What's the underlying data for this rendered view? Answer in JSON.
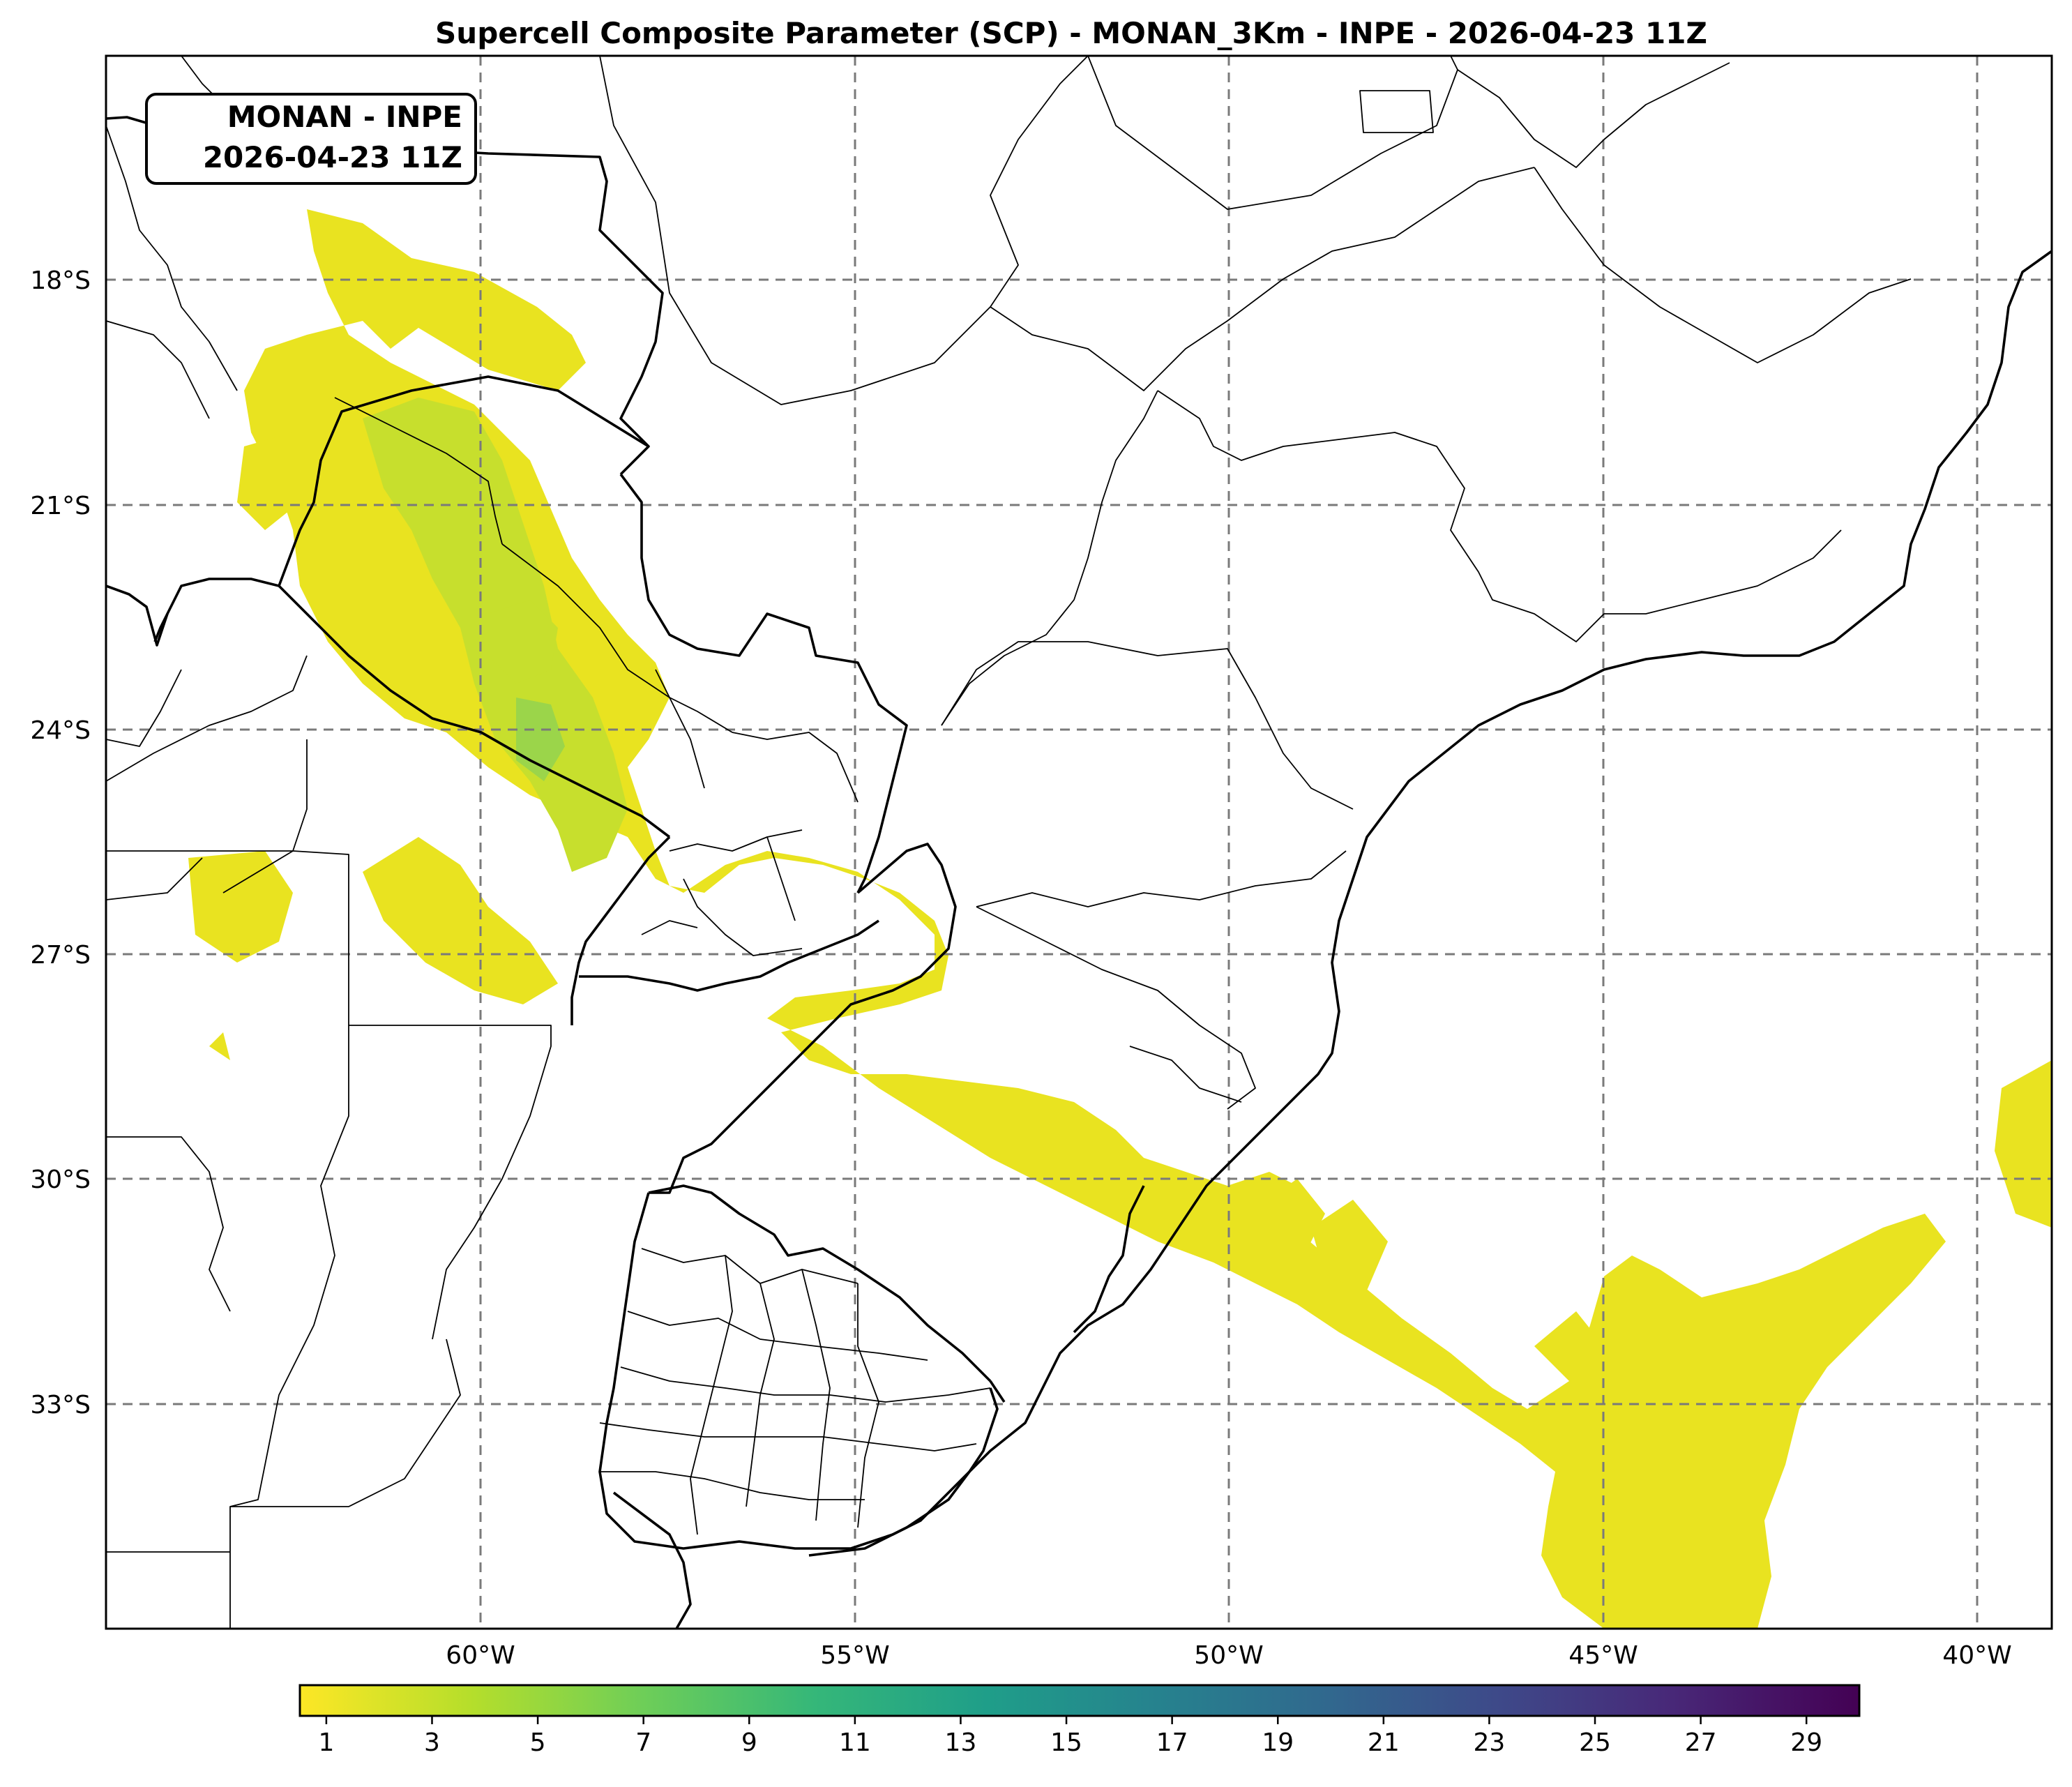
{
  "title": "Supercell Composite Parameter (SCP) - MONAN_3Km - INPE - 2026-04-23 11Z",
  "info_box": {
    "line1": "MONAN - INPE",
    "line2": "2026-04-23 11Z"
  },
  "map": {
    "lon_range": [
      -65,
      -39
    ],
    "lat_range": [
      -36,
      -15
    ],
    "lon_ticks": [
      {
        "value": -60,
        "label": "60°W"
      },
      {
        "value": -55,
        "label": "55°W"
      },
      {
        "value": -50,
        "label": "50°W"
      },
      {
        "value": -45,
        "label": "45°W"
      },
      {
        "value": -40,
        "label": "40°W"
      }
    ],
    "lat_ticks": [
      {
        "value": -18,
        "label": "18°S"
      },
      {
        "value": -21,
        "label": "21°S"
      },
      {
        "value": -24,
        "label": "24°S"
      },
      {
        "value": -27,
        "label": "27°S"
      },
      {
        "value": -30,
        "label": "30°S"
      },
      {
        "value": -33,
        "label": "33°S"
      }
    ],
    "gridlines": "dashed"
  },
  "colorbar": {
    "colormap": "viridis_r",
    "range": [
      0.5,
      30
    ],
    "ticks": [
      "1",
      "3",
      "5",
      "7",
      "9",
      "11",
      "13",
      "15",
      "17",
      "19",
      "21",
      "23",
      "25",
      "27",
      "29"
    ],
    "colors": [
      "#fde725",
      "#b5de2b",
      "#6ece58",
      "#35b779",
      "#1f9e89",
      "#26828e",
      "#31688e",
      "#3e4989",
      "#482878",
      "#440154"
    ]
  },
  "field_colors": {
    "low": "#e9e320",
    "mid": "#c7df2d",
    "high": "#9bd54a"
  }
}
